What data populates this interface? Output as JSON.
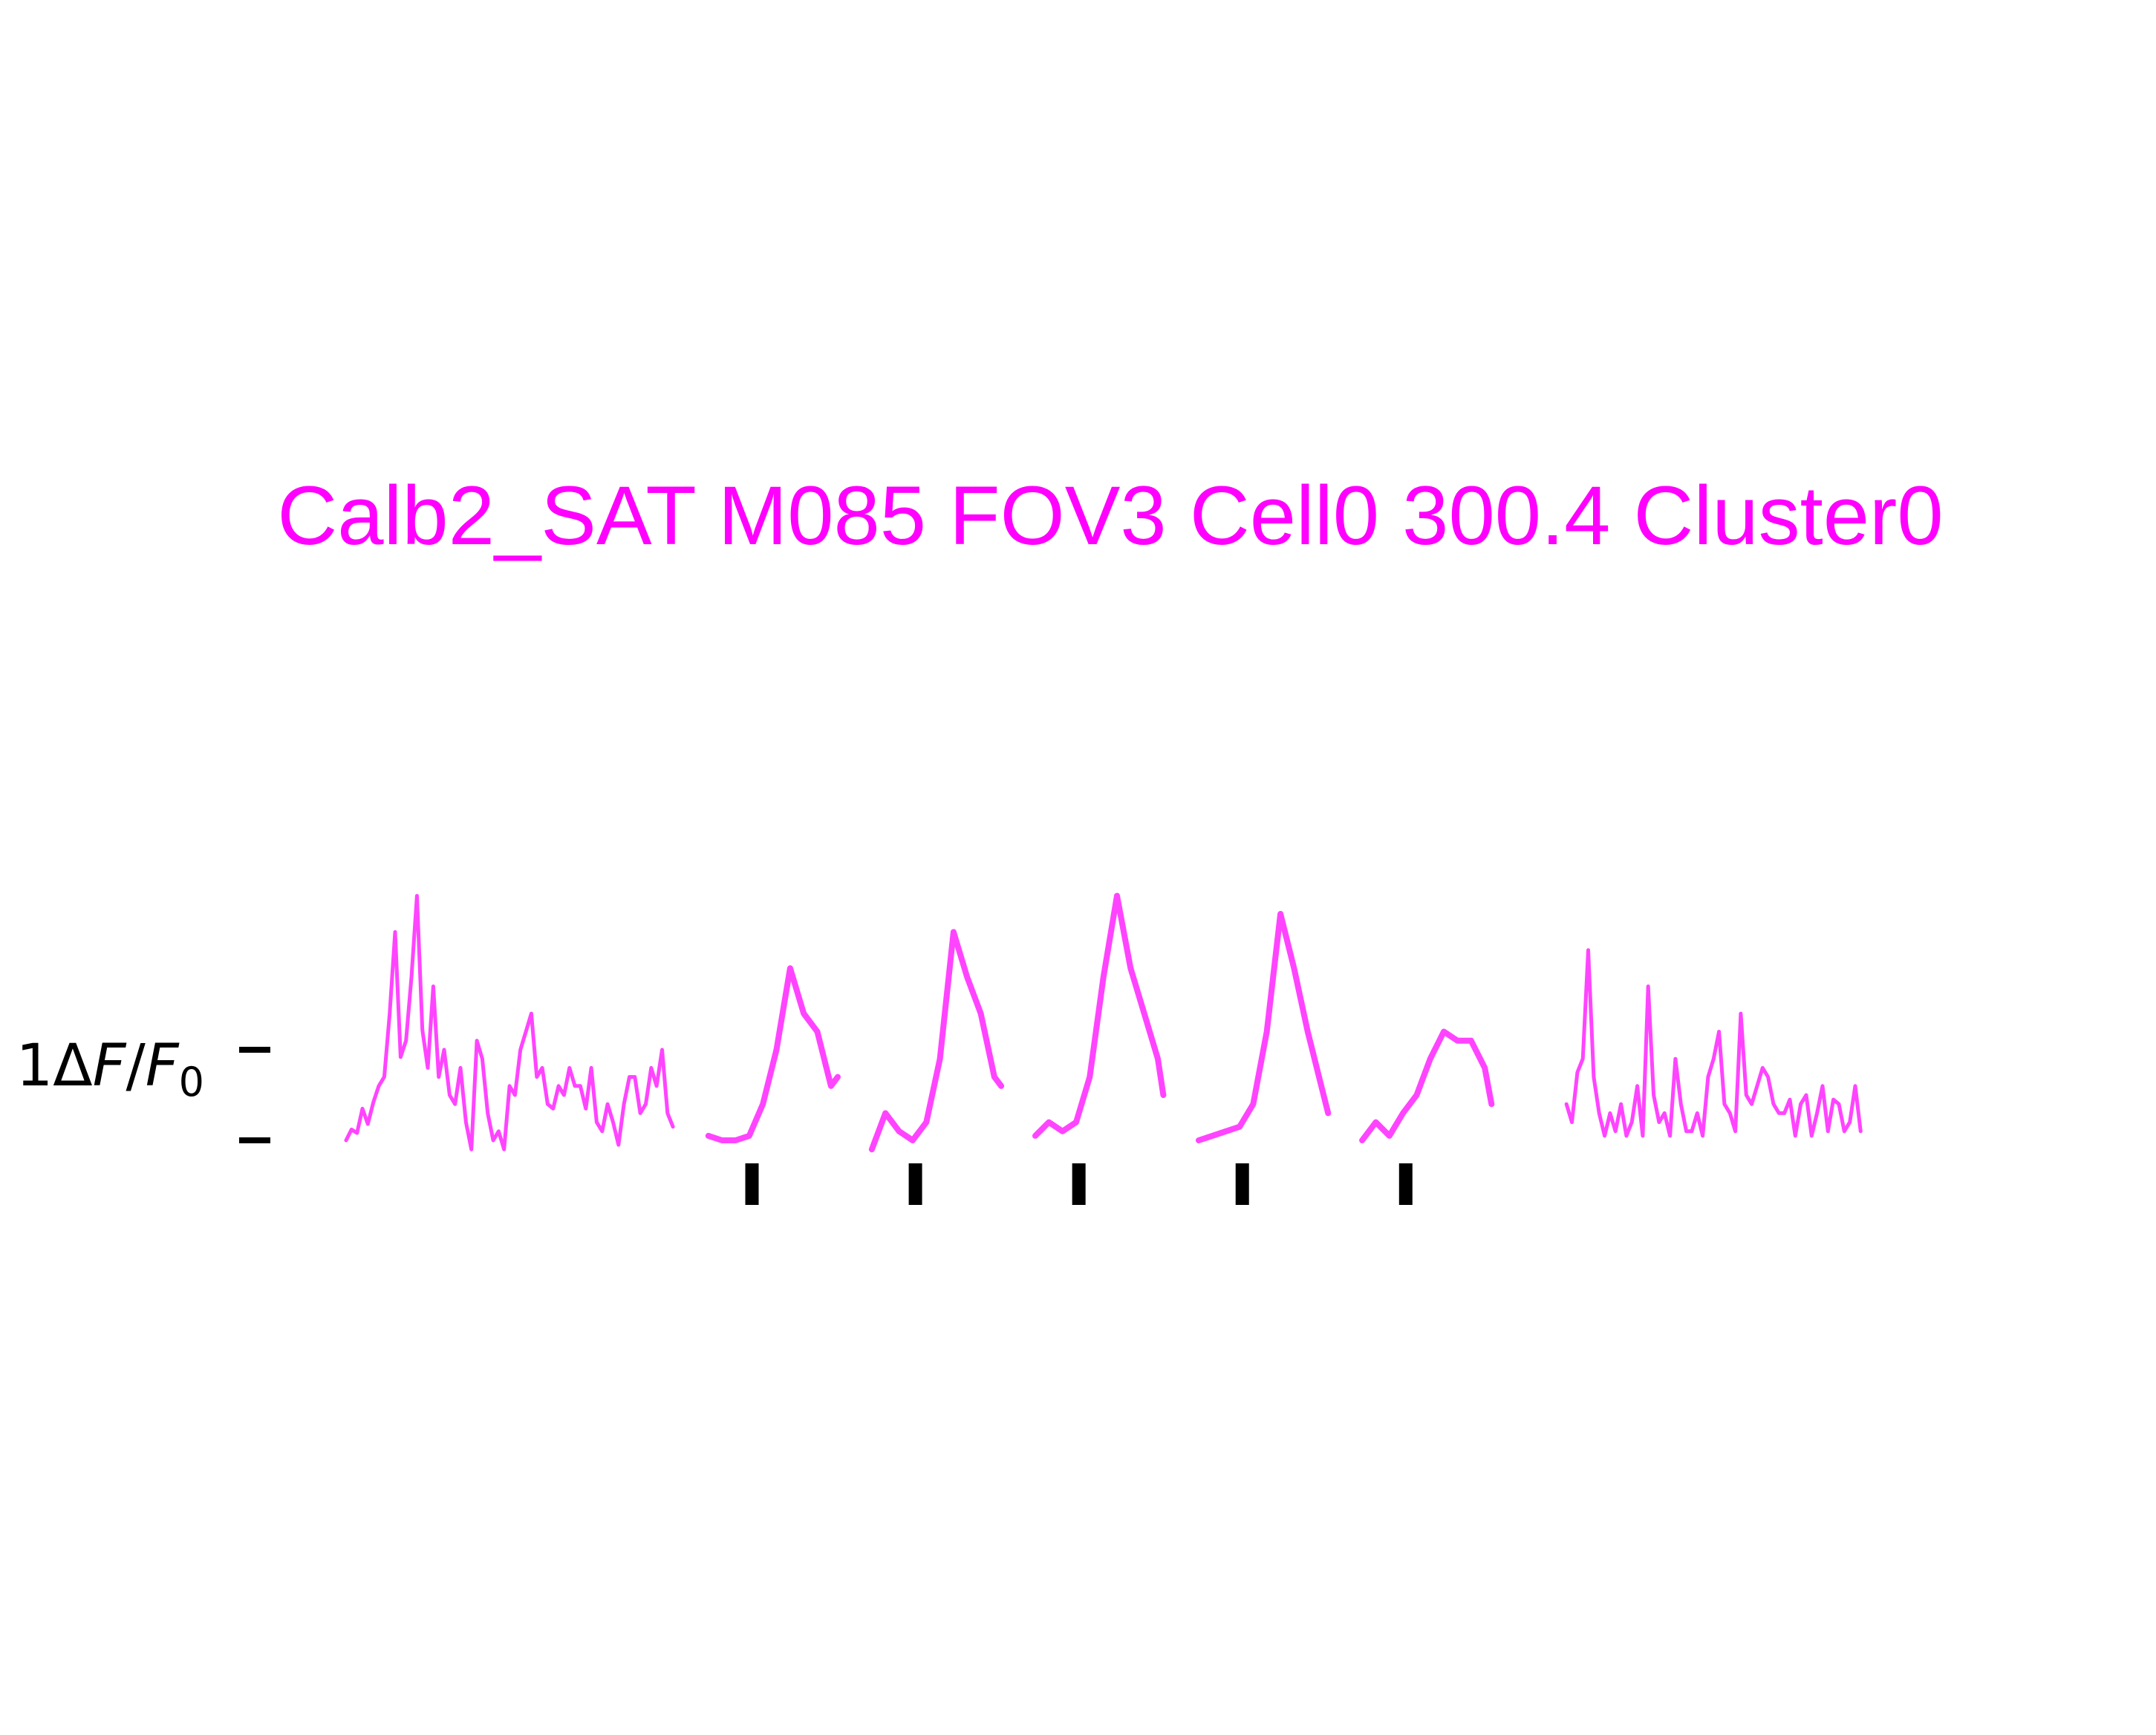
{
  "chart_data": {
    "type": "line",
    "title": "Calb2_SAT M085 FOV3 Cell0 300.4 Cluster0",
    "ylabel": {
      "prefix": "1",
      "delta": "Δ",
      "F": "F",
      "slash": "/",
      "F0_base": "F",
      "F0_sub": "0"
    },
    "color": "#ff44ff",
    "title_color": "#ff00ff",
    "scale_bar": {
      "units": "ΔF/F0",
      "low": 0,
      "high": 1
    },
    "x_range": [
      0,
      1120
    ],
    "y_range": [
      -0.5,
      3.2
    ],
    "stim_markers_x": [
      298,
      418,
      538,
      658,
      778
    ],
    "segments": [
      {
        "name": "pre",
        "style": "thin",
        "x": [
          0,
          4,
          8,
          12,
          16,
          20,
          24,
          28,
          32,
          36,
          40,
          44,
          48,
          52,
          56,
          60,
          64,
          68,
          72,
          76,
          80,
          84,
          88,
          92,
          96,
          100,
          104,
          108,
          112,
          116,
          120,
          124,
          128,
          132,
          136,
          140,
          144,
          148,
          152,
          156,
          160,
          164,
          168,
          172,
          176,
          180,
          184,
          188,
          192,
          196,
          200,
          204,
          208,
          212,
          216,
          220,
          224,
          228,
          232,
          236,
          240
        ],
        "y": [
          0.0,
          0.12,
          0.08,
          0.35,
          0.18,
          0.42,
          0.6,
          0.7,
          1.4,
          2.3,
          0.92,
          1.1,
          1.8,
          2.7,
          1.22,
          0.8,
          1.7,
          0.7,
          1.0,
          0.5,
          0.4,
          0.8,
          0.2,
          -0.1,
          1.1,
          0.9,
          0.3,
          0.0,
          0.1,
          -0.1,
          0.6,
          0.5,
          1.0,
          1.2,
          1.4,
          0.7,
          0.8,
          0.4,
          0.35,
          0.6,
          0.5,
          0.8,
          0.6,
          0.6,
          0.35,
          0.8,
          0.2,
          0.1,
          0.4,
          0.2,
          -0.05,
          0.4,
          0.7,
          0.7,
          0.3,
          0.4,
          0.8,
          0.6,
          1.0,
          0.3,
          0.15
        ]
      },
      {
        "name": "trial-1",
        "style": "thick",
        "x": [
          266,
          276,
          286,
          296,
          306,
          316,
          326,
          336,
          346,
          356,
          361
        ],
        "y": [
          0.05,
          0.0,
          0.0,
          0.05,
          0.4,
          1.0,
          1.9,
          1.4,
          1.2,
          0.6,
          0.7
        ]
      },
      {
        "name": "trial-2",
        "style": "thick",
        "x": [
          386,
          396,
          406,
          416,
          426,
          436,
          446,
          456,
          466,
          476,
          481
        ],
        "y": [
          -0.1,
          0.3,
          0.1,
          0.0,
          0.2,
          0.9,
          2.3,
          1.8,
          1.4,
          0.7,
          0.6
        ]
      },
      {
        "name": "trial-3",
        "style": "thick",
        "x": [
          506,
          516,
          526,
          536,
          546,
          556,
          566,
          576,
          586,
          596,
          600
        ],
        "y": [
          0.05,
          0.2,
          0.1,
          0.2,
          0.7,
          1.8,
          2.7,
          1.9,
          1.4,
          0.9,
          0.5
        ]
      },
      {
        "name": "trial-4",
        "style": "thick",
        "x": [
          626,
          636,
          646,
          656,
          666,
          676,
          686,
          696,
          706,
          716,
          721
        ],
        "y": [
          0.0,
          0.05,
          0.1,
          0.15,
          0.4,
          1.2,
          2.5,
          1.9,
          1.2,
          0.6,
          0.3
        ]
      },
      {
        "name": "trial-5",
        "style": "thick",
        "x": [
          746,
          756,
          766,
          776,
          786,
          796,
          806,
          816,
          826,
          836,
          841
        ],
        "y": [
          0.0,
          0.2,
          0.05,
          0.3,
          0.5,
          0.9,
          1.2,
          1.1,
          1.1,
          0.8,
          0.4
        ]
      },
      {
        "name": "post",
        "style": "thin",
        "x": [
          896,
          900,
          904,
          908,
          912,
          916,
          920,
          924,
          928,
          932,
          936,
          940,
          944,
          948,
          952,
          956,
          960,
          964,
          968,
          972,
          976,
          980,
          984,
          988,
          992,
          996,
          1000,
          1004,
          1008,
          1012,
          1016,
          1020,
          1024,
          1028,
          1032,
          1036,
          1040,
          1044,
          1048,
          1052,
          1056,
          1060,
          1064,
          1068,
          1072,
          1076,
          1080,
          1084,
          1088,
          1092,
          1096,
          1100,
          1104,
          1108,
          1112
        ],
        "y": [
          0.4,
          0.2,
          0.75,
          0.9,
          2.1,
          0.7,
          0.3,
          0.05,
          0.3,
          0.1,
          0.4,
          0.05,
          0.2,
          0.6,
          0.05,
          1.7,
          0.5,
          0.2,
          0.3,
          0.05,
          0.9,
          0.4,
          0.1,
          0.1,
          0.3,
          0.05,
          0.7,
          0.9,
          1.2,
          0.4,
          0.3,
          0.1,
          1.4,
          0.5,
          0.4,
          0.6,
          0.8,
          0.7,
          0.4,
          0.3,
          0.3,
          0.45,
          0.05,
          0.4,
          0.5,
          0.05,
          0.3,
          0.6,
          0.1,
          0.45,
          0.4,
          0.1,
          0.2,
          0.6,
          0.1
        ]
      }
    ]
  }
}
